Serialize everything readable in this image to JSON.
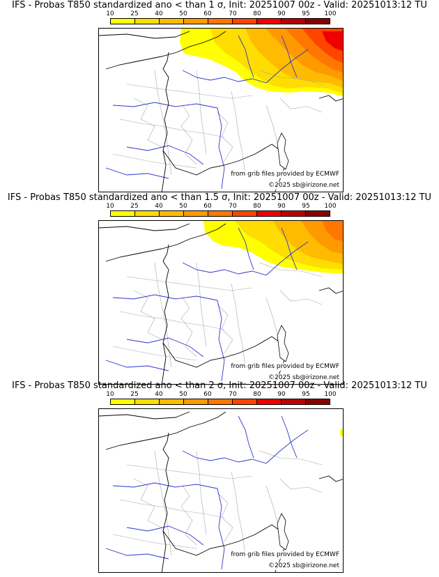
{
  "scale": {
    "labels": [
      "10",
      "25",
      "40",
      "50",
      "60",
      "70",
      "80",
      "90",
      "95",
      "100"
    ],
    "colors": [
      "#ffff00",
      "#ffdd00",
      "#ffbb00",
      "#ff9900",
      "#ff7700",
      "#ff4400",
      "#ee0000",
      "#bb0000",
      "#880000"
    ]
  },
  "panels": [
    {
      "title": "IFS - Probas T850  standardized ano < than 1 σ, Init: 20251007 00z - Valid: 20251013:12 TU",
      "source": "from grib files provided by ECMWF",
      "copyright": "©2025 sb@irizone.net"
    },
    {
      "title": "IFS - Probas T850  standardized ano < than 1.5 σ, Init: 20251007 00z - Valid: 20251013:12 TU",
      "source": "from grib files provided by ECMWF",
      "copyright": "©2025 sb@irizone.net"
    },
    {
      "title": "IFS - Probas T850  standardized ano < than 2 σ, Init: 20251007 00z - Valid: 20251013:12 TU",
      "source": "from grib files provided by ECMWF",
      "copyright": "©2025 sb@irizone.net"
    }
  ],
  "colors": {
    "coast": "#000000",
    "rivers": "#2a35c8",
    "borders": "#a8a8a8"
  }
}
